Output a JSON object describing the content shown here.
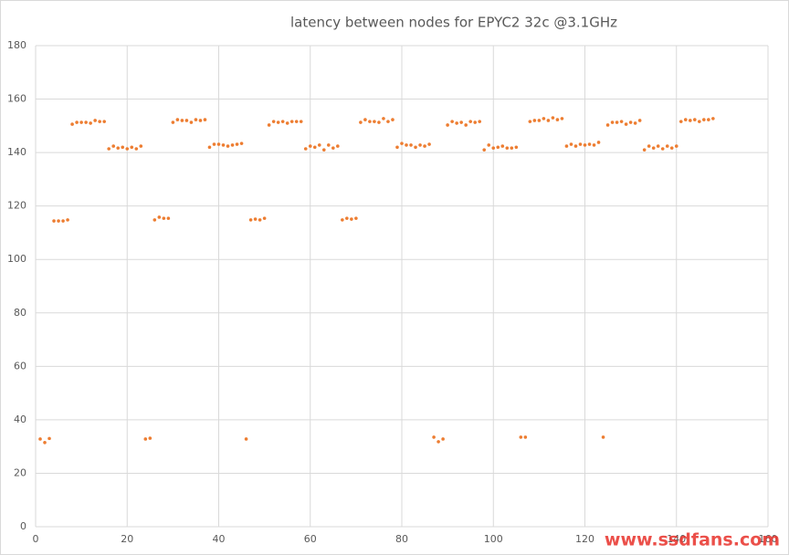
{
  "chart_data": {
    "type": "scatter",
    "title": "latency between nodes for EPYC2 32c @3.1GHz",
    "annotation": "www.ssdfans.com",
    "color": "#ed7d31",
    "grid": true,
    "xlim": [
      0,
      160
    ],
    "xticks": [
      0,
      20,
      40,
      60,
      80,
      100,
      120,
      140,
      160
    ],
    "ylim": [
      0,
      180
    ],
    "yticks": [
      0,
      20,
      40,
      60,
      80,
      100,
      120,
      140,
      160,
      180
    ],
    "x": [
      1,
      2,
      3,
      4,
      5,
      6,
      7,
      8,
      9,
      10,
      11,
      12,
      13,
      14,
      15,
      16,
      17,
      18,
      19,
      20,
      21,
      22,
      23,
      24,
      25,
      26,
      27,
      28,
      29,
      30,
      31,
      32,
      33,
      34,
      35,
      36,
      37,
      38,
      39,
      40,
      41,
      42,
      43,
      44,
      45,
      46,
      47,
      48,
      49,
      50,
      51,
      52,
      53,
      54,
      55,
      56,
      57,
      58,
      59,
      60,
      61,
      62,
      63,
      64,
      65,
      66,
      67,
      68,
      69,
      70,
      71,
      72,
      73,
      74,
      75,
      76,
      77,
      78,
      79,
      80,
      81,
      82,
      83,
      84,
      85,
      86,
      87,
      88,
      89,
      90,
      91,
      92,
      93,
      94,
      95,
      96,
      97,
      98,
      99,
      100,
      101,
      102,
      103,
      104,
      105,
      106,
      107,
      108,
      109,
      110,
      111,
      112,
      113,
      114,
      115,
      116,
      117,
      118,
      119,
      120,
      121,
      122,
      123,
      124,
      125,
      126,
      127,
      128,
      129,
      130,
      131,
      132,
      133,
      134,
      135,
      136,
      137,
      138,
      139,
      140,
      141,
      142,
      143,
      144,
      145,
      146,
      147,
      148
    ],
    "values": [
      32.8,
      31.5,
      33,
      114.4,
      114.4,
      114.4,
      114.8,
      150.6,
      151.3,
      151.3,
      151.3,
      151,
      152,
      151.6,
      151.6,
      141.4,
      142.4,
      141.7,
      142,
      141.4,
      142,
      141.4,
      142.4,
      32.8,
      33.1,
      114.8,
      115.8,
      115.4,
      115.4,
      151.3,
      152.3,
      152,
      152,
      151.3,
      152.3,
      152,
      152.3,
      142,
      143.1,
      143.1,
      142.8,
      142.4,
      142.8,
      143.1,
      143.4,
      32.8,
      114.8,
      115.1,
      114.8,
      115.4,
      150.3,
      151.6,
      151.3,
      151.6,
      151,
      151.6,
      151.6,
      151.6,
      141.4,
      142.4,
      142,
      142.8,
      141,
      142.8,
      141.7,
      142.4,
      114.8,
      115.4,
      115.1,
      115.4,
      151.3,
      152.3,
      151.6,
      151.6,
      151.3,
      152.7,
      151.6,
      152.3,
      142,
      143.4,
      142.8,
      142.8,
      142,
      142.8,
      142.4,
      143.1,
      33.5,
      31.8,
      32.8,
      150.3,
      151.6,
      151,
      151.3,
      150.3,
      151.6,
      151.3,
      151.6,
      141,
      142.8,
      141.7,
      142,
      142.4,
      141.7,
      141.7,
      142,
      33.5,
      33.5,
      151.6,
      152,
      152,
      152.7,
      152,
      153,
      152.3,
      152.7,
      142.4,
      143.1,
      142.4,
      143.1,
      142.8,
      143.1,
      142.8,
      143.8,
      33.5,
      150.3,
      151.3,
      151.3,
      151.6,
      150.6,
      151.3,
      151,
      152,
      141,
      142.4,
      141.7,
      142.4,
      141.4,
      142.4,
      141.7,
      142.4,
      151.6,
      152.3,
      152,
      152.3,
      151.6,
      152.3,
      152.3,
      152.7
    ]
  }
}
